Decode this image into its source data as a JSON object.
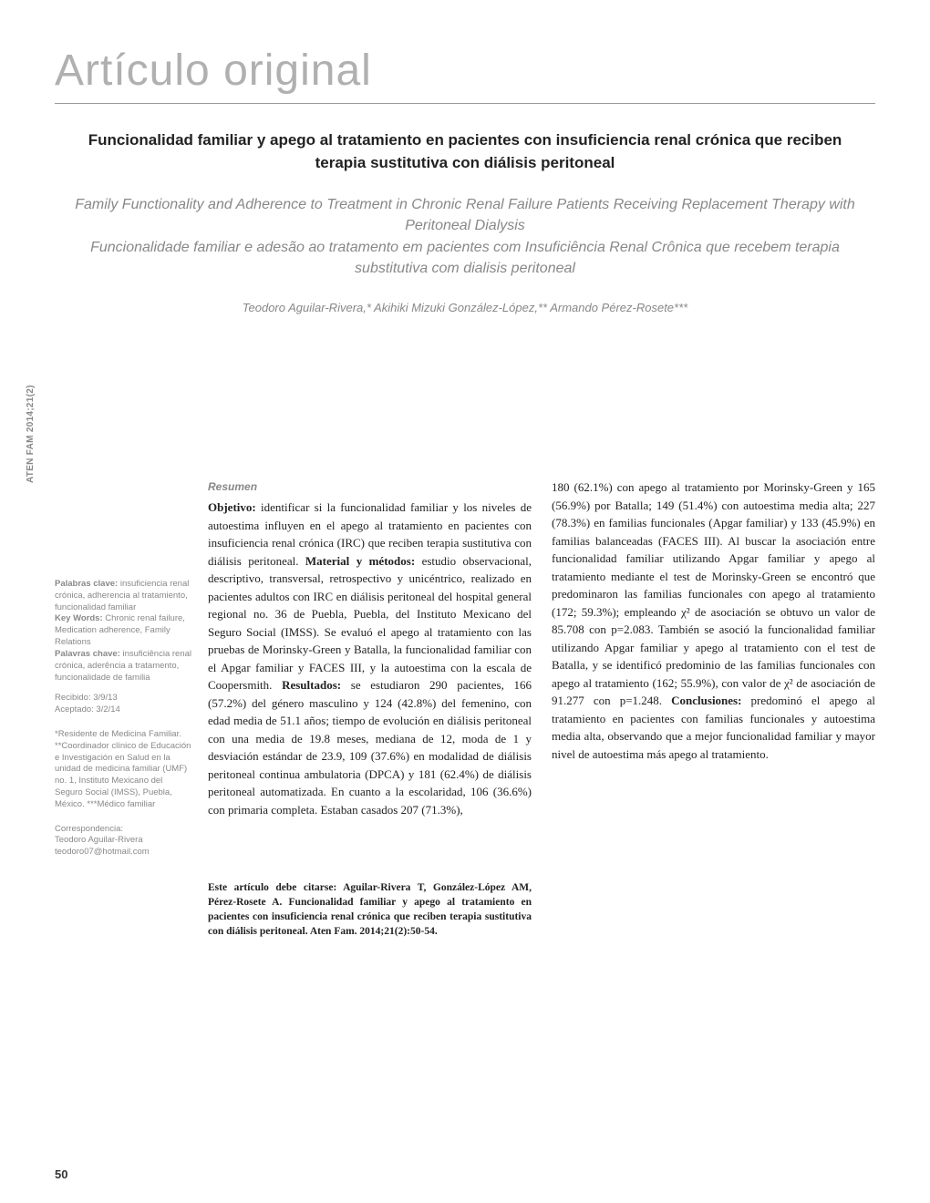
{
  "section_label": "Artículo original",
  "title_es": "Funcionalidad familiar y apego al tratamiento en pacientes con insuficiencia renal crónica que reciben terapia sustitutiva con diálisis peritoneal",
  "title_en": "Family Functionality and Adherence to Treatment in Chronic Renal Failure Patients Receiving Replacement Therapy with Peritoneal Dialysis",
  "title_pt": "Funcionalidade familiar e adesão ao tratamento em pacientes com Insuficiência Renal Crônica que recebem terapia substitutiva com dialisis peritoneal",
  "authors": "Teodoro Aguilar-Rivera,* Akihiki Mizuki González-López,** Armando Pérez-Rosete***",
  "journal_side": "ATEN FAM 2014;21(2)",
  "sidebar": {
    "kw_es_label": "Palabras clave:",
    "kw_es": " insuficiencia renal crónica, adherencia al tratamiento, funcionalidad familiar",
    "kw_en_label": "Key Words:",
    "kw_en": " Chronic renal failure, Medication adherence, Family Relations",
    "kw_pt_label": "Palavras chave:",
    "kw_pt": " insuficiência renal crónica, aderência a tratamento, funcionalidade de familia",
    "received": "Recibido: 3/9/13",
    "accepted": "Aceptado: 3/2/14",
    "affil": "*Residente de Medicina Familiar. **Coordinador clínico de Educación e Investigación en Salud en la unidad de medicina familiar (UMF) no. 1, Instituto Mexicano del Seguro Social (IMSS), Puebla, México. ***Médico familiar",
    "corr_label": "Correspondencia:",
    "corr_name": "Teodoro Aguilar-Rivera",
    "corr_email": "teodoro07@hotmail.com"
  },
  "resumen_head": "Resumen",
  "col1": "Objetivo: identificar si la funcionalidad familiar y los niveles de autoestima influyen en el apego al tratamiento en pacientes con insuficiencia renal crónica (IRC) que reciben terapia sustitutiva con diálisis peritoneal. Material y métodos: estudio observacional, descriptivo, transversal, retrospectivo y unicéntrico, realizado en pacientes adultos con IRC en diálisis peritoneal del hospital general regional no. 36 de Puebla, Puebla, del Instituto Mexicano del Seguro Social (IMSS). Se evaluó el apego al tratamiento con las pruebas de Morinsky-Green y Batalla, la funcionalidad familiar con el Apgar familiar y FACES III, y la autoestima con la escala de Coopersmith. Resultados: se estudiaron 290 pacientes, 166 (57.2%) del género masculino y 124 (42.8%) del femenino, con edad media de 51.1 años; tiempo de evolución en diálisis peritoneal con una media de 19.8 meses, mediana de 12, moda de 1 y desviación estándar de 23.9, 109 (37.6%) en modalidad de diálisis peritoneal continua ambulatoria (DPCA) y 181 (62.4%) de diálisis peritoneal automatizada. En cuanto a la escolaridad, 106 (36.6%) con primaria completa. Estaban casados 207 (71.3%),",
  "col2": "180 (62.1%) con apego al tratamiento por Morinsky-Green y 165 (56.9%) por Batalla; 149 (51.4%) con autoestima media alta; 227 (78.3%) en familias funcionales (Apgar familiar) y 133 (45.9%) en familias balanceadas (FACES III). Al buscar la asociación entre funcionalidad familiar utilizando Apgar familiar y apego al tratamiento mediante el test de Morinsky-Green se encontró que predominaron las familias funcionales con apego al tratamiento (172; 59.3%); empleando χ² de asociación se obtuvo un valor de 85.708 con p=2.083. También se asoció la funcionalidad familiar utilizando Apgar familiar y apego al tratamiento con el test de Batalla, y se identificó predominio de las familias funcionales con apego al tratamiento (162; 55.9%), con valor de χ² de asociación de 91.277 con p=1.248. Conclusiones: predominó el apego al tratamiento en pacientes con familias funcionales y autoestima media alta, observando que a mejor funcionalidad familiar y mayor nivel de autoestima más apego al tratamiento.",
  "citation": "Este artículo debe citarse: Aguilar-Rivera T, González-López AM, Pérez-Rosete A. Funcionalidad familiar y apego al tratamiento en pacientes con insuficiencia renal crónica que reciben terapia sustitutiva con diálisis peritoneal. Aten Fam. 2014;21(2):50-54.",
  "page_num": "50"
}
